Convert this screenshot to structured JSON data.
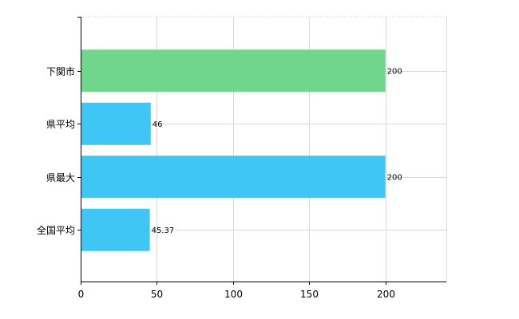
{
  "chart_data": {
    "type": "bar",
    "orientation": "horizontal",
    "categories": [
      "下関市",
      "県平均",
      "県最大",
      "全国平均"
    ],
    "values": [
      200,
      46,
      200,
      45.37
    ],
    "value_labels": [
      "200",
      "46",
      "200",
      "45.37"
    ],
    "bar_colors": [
      "#6fd68b",
      "#3fc6f5",
      "#3fc6f5",
      "#3fc6f5"
    ],
    "xlim": [
      0,
      240
    ],
    "xticks": [
      0,
      50,
      100,
      150,
      200
    ],
    "grid": true,
    "title": "",
    "xlabel": "",
    "ylabel": ""
  }
}
